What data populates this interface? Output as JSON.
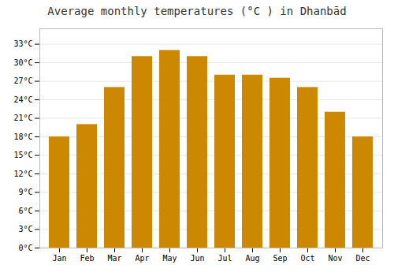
{
  "chart_data": {
    "type": "bar",
    "title": "Average monthly temperatures (°C ) in Dhanbād",
    "categories": [
      "Jan",
      "Feb",
      "Mar",
      "Apr",
      "May",
      "Jun",
      "Jul",
      "Aug",
      "Sep",
      "Oct",
      "Nov",
      "Dec"
    ],
    "values": [
      18,
      20,
      26,
      31,
      32,
      31,
      28,
      28,
      27.5,
      26,
      22,
      18
    ],
    "color": "#CC8800",
    "ylim": [
      0,
      35.5
    ],
    "yticks": [
      {
        "value": 0,
        "label": "0°C"
      },
      {
        "value": 3,
        "label": "3°C"
      },
      {
        "value": 6,
        "label": "6°C"
      },
      {
        "value": 9,
        "label": "9°C"
      },
      {
        "value": 12,
        "label": "12°C"
      },
      {
        "value": 15,
        "label": "15°C"
      },
      {
        "value": 18,
        "label": "18°C"
      },
      {
        "value": 21,
        "label": "21°C"
      },
      {
        "value": 24,
        "label": "24°C"
      },
      {
        "value": 27,
        "label": "27°C"
      },
      {
        "value": 30,
        "label": "30°C"
      },
      {
        "value": 33,
        "label": "33°C"
      }
    ],
    "grid": true
  }
}
